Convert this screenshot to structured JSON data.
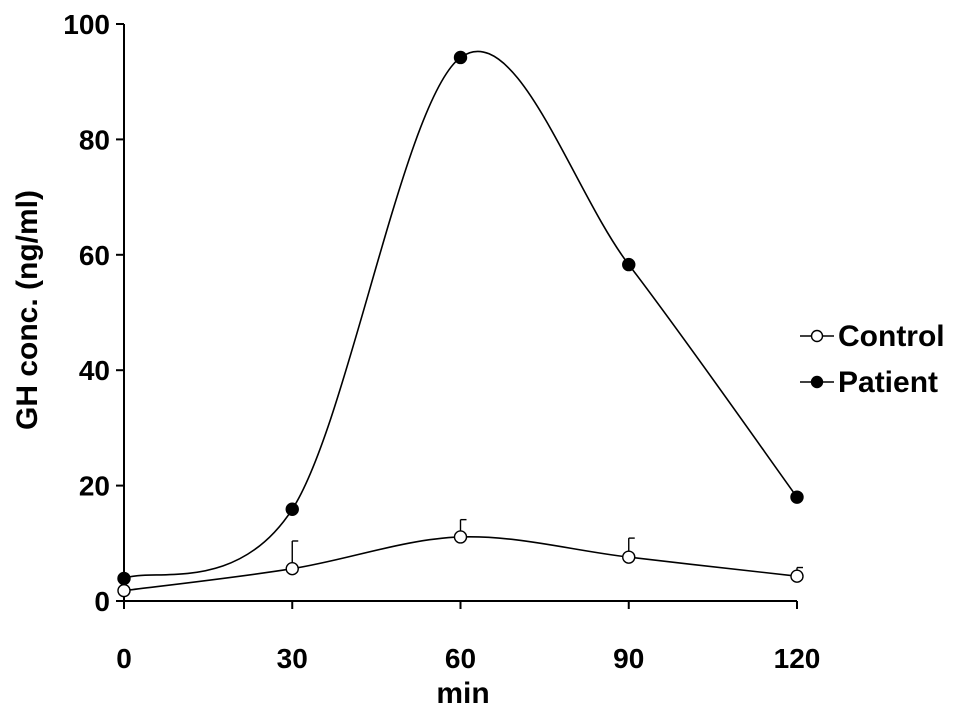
{
  "chart_data": {
    "type": "line",
    "xlabel": "min",
    "ylabel": "GH conc. (ng/ml)",
    "x": [
      0,
      30,
      60,
      90,
      120
    ],
    "xlim": [
      0,
      120
    ],
    "ylim": [
      0,
      100
    ],
    "xticks": [
      0,
      30,
      60,
      90,
      120
    ],
    "yticks": [
      0,
      20,
      40,
      60,
      80,
      100
    ],
    "grid": false,
    "legend_position": "right",
    "series": [
      {
        "name": "Control",
        "values": [
          1.8,
          5.6,
          11.1,
          7.6,
          4.3
        ],
        "error_upper": [
          0,
          4.8,
          3.0,
          3.3,
          1.5
        ],
        "marker": "open-circle",
        "color": "#000000"
      },
      {
        "name": "Patient",
        "values": [
          3.9,
          15.9,
          94.2,
          58.3,
          18.0
        ],
        "marker": "filled-circle",
        "color": "#000000"
      }
    ]
  }
}
